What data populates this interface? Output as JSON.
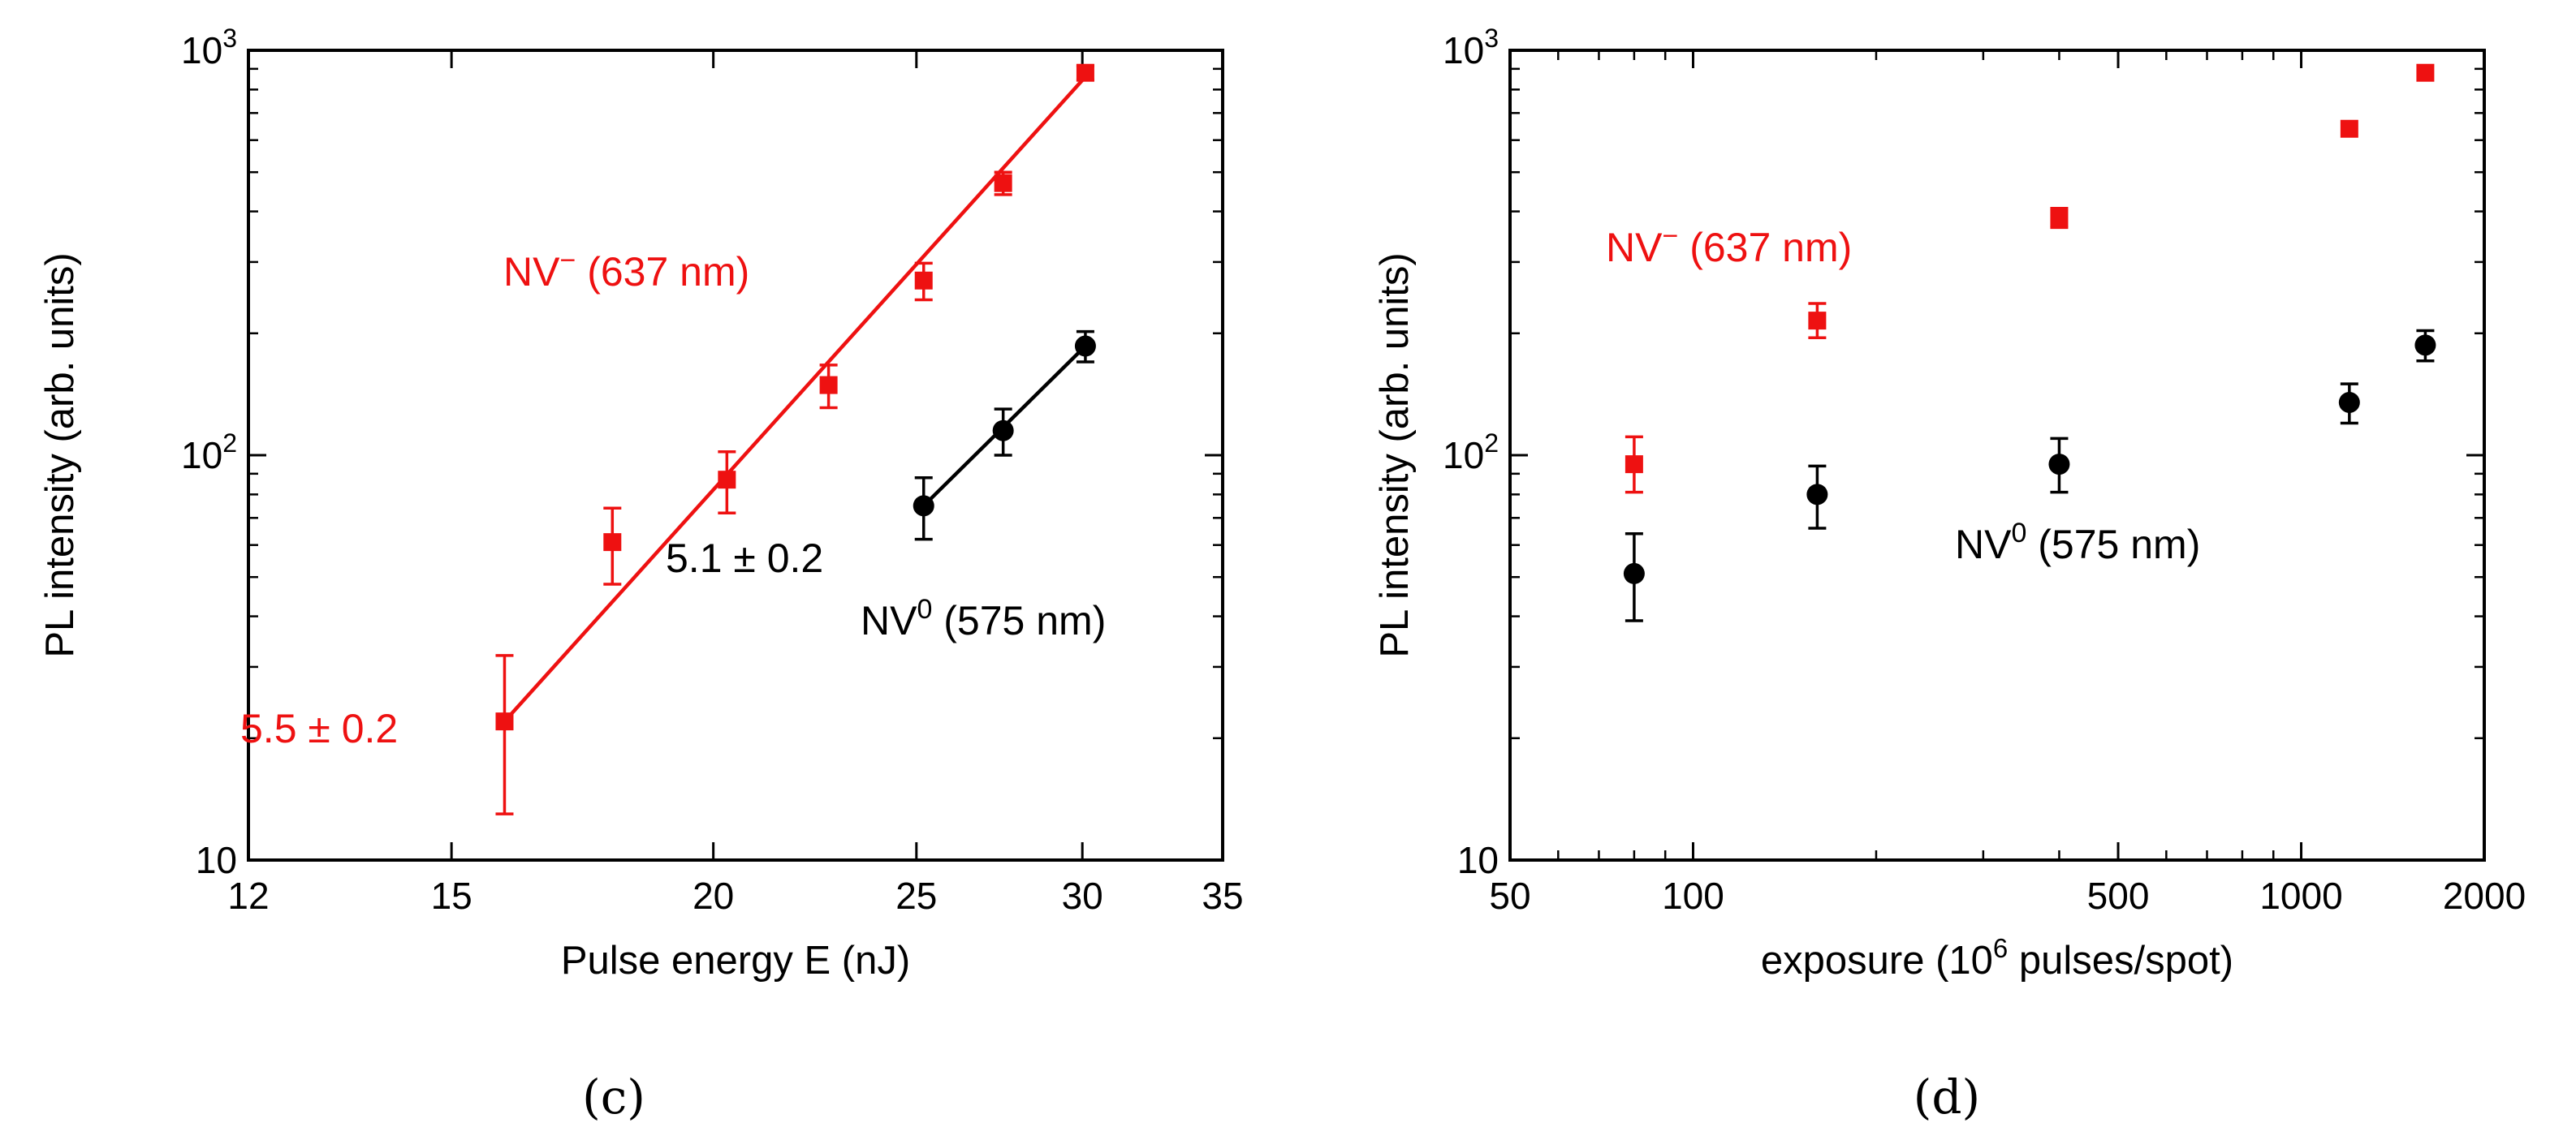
{
  "colors": {
    "nv_minus": "#ee1111",
    "nv_zero": "#000000"
  },
  "chart_data": [
    {
      "panel": "(c)",
      "type": "scatter",
      "xscale": "log",
      "yscale": "log",
      "xlabel": "Pulse energy E (nJ)",
      "ylabel": "PL intensity (arb. units)",
      "xlim": [
        12,
        35
      ],
      "ylim": [
        10,
        1000
      ],
      "xticks": [
        12,
        15,
        20,
        25,
        30,
        35
      ],
      "xtick_labels": [
        "12",
        "15",
        "20",
        "25",
        "30",
        "35"
      ],
      "yticks": [
        10,
        100,
        1000
      ],
      "ytick_labels": [
        {
          "base": "10",
          "exp": ""
        },
        {
          "base": "10",
          "exp": "2"
        },
        {
          "base": "10",
          "exp": "3"
        }
      ],
      "series": [
        {
          "name": "NV− (637 nm)",
          "label_parts": {
            "main": "NV",
            "sup": "−",
            "rest": " (637 nm)"
          },
          "marker": "square",
          "color": "#ee1111",
          "x": [
            15.9,
            17.9,
            20.3,
            22.7,
            25.2,
            27.5,
            30.1
          ],
          "y": [
            22,
            61,
            87,
            149,
            270,
            470,
            880
          ],
          "err_low": [
            9,
            13,
            15,
            18,
            28,
            30,
            35
          ],
          "err_high": [
            10,
            13,
            15,
            18,
            28,
            30,
            35
          ],
          "fit": {
            "exponent_label": "5.5 ± 0.2",
            "x": [
              15.9,
              30.1
            ],
            "y": [
              22,
              860
            ]
          }
        },
        {
          "name": "NV0 (575 nm)",
          "label_parts": {
            "main": "NV",
            "sup": "0",
            "rest": " (575 nm)"
          },
          "marker": "circle",
          "color": "#000000",
          "x": [
            25.2,
            27.5,
            30.1
          ],
          "y": [
            75,
            115,
            186
          ],
          "err_low": [
            13,
            15,
            16
          ],
          "err_high": [
            13,
            15,
            16
          ],
          "fit": {
            "exponent_label": "5.1 ± 0.2",
            "x": [
              25.2,
              30.1
            ],
            "y": [
              75,
              186
            ]
          }
        }
      ]
    },
    {
      "panel": "(d)",
      "type": "scatter",
      "xscale": "log",
      "yscale": "log",
      "xlabel_parts": {
        "main": "exposure (10",
        "sup": "6",
        "rest": " pulses/spot)"
      },
      "xlabel": "exposure (10^6 pulses/spot)",
      "ylabel": "PL intensity (arb. units)",
      "xlim": [
        50,
        2000
      ],
      "ylim": [
        10,
        1000
      ],
      "xticks": [
        50,
        100,
        500,
        1000,
        2000
      ],
      "xtick_labels": [
        "50",
        "100",
        "500",
        "1000",
        "2000"
      ],
      "yticks": [
        10,
        100,
        1000
      ],
      "ytick_labels": [
        {
          "base": "10",
          "exp": ""
        },
        {
          "base": "10",
          "exp": "2"
        },
        {
          "base": "10",
          "exp": "3"
        }
      ],
      "series": [
        {
          "name": "NV− (637 nm)",
          "label_parts": {
            "main": "NV",
            "sup": "−",
            "rest": " (637 nm)"
          },
          "marker": "square",
          "color": "#ee1111",
          "x": [
            80,
            160,
            400,
            1200,
            1600
          ],
          "y": [
            95,
            215,
            385,
            640,
            880
          ],
          "err_low": [
            14,
            20,
            20,
            0,
            0
          ],
          "err_high": [
            16,
            22,
            22,
            0,
            0
          ]
        },
        {
          "name": "NV0 (575 nm)",
          "label_parts": {
            "main": "NV",
            "sup": "0",
            "rest": " (575 nm)"
          },
          "marker": "circle",
          "color": "#000000",
          "x": [
            80,
            160,
            400,
            1200,
            1600
          ],
          "y": [
            51,
            80,
            95,
            135,
            187
          ],
          "err_low": [
            12,
            14,
            14,
            15,
            16
          ],
          "err_high": [
            13,
            14,
            15,
            15,
            16
          ]
        }
      ]
    }
  ]
}
